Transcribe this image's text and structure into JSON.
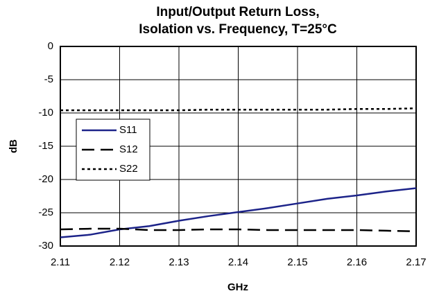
{
  "chart_data": {
    "type": "line",
    "title": [
      "Input/Output Return Loss,",
      "Isolation vs. Frequency, T=25°C"
    ],
    "x_label": "GHz",
    "y_label": "dB",
    "x": [
      2.11,
      2.115,
      2.12,
      2.125,
      2.13,
      2.135,
      2.14,
      2.145,
      2.15,
      2.155,
      2.16,
      2.165,
      2.17
    ],
    "series": [
      {
        "name": "S11",
        "color": "#1c2389",
        "dash": "solid",
        "values": [
          -28.7,
          -28.3,
          -27.5,
          -27.0,
          -26.2,
          -25.5,
          -24.9,
          -24.3,
          -23.6,
          -22.9,
          -22.4,
          -21.8,
          -21.3
        ]
      },
      {
        "name": "S12",
        "color": "#000000",
        "dash": "dashed",
        "values": [
          -27.5,
          -27.4,
          -27.4,
          -27.6,
          -27.6,
          -27.5,
          -27.5,
          -27.6,
          -27.6,
          -27.6,
          -27.6,
          -27.7,
          -27.8
        ]
      },
      {
        "name": "S22",
        "color": "#000000",
        "dash": "dotted",
        "values": [
          -9.6,
          -9.6,
          -9.6,
          -9.6,
          -9.6,
          -9.5,
          -9.5,
          -9.5,
          -9.5,
          -9.5,
          -9.4,
          -9.4,
          -9.3
        ]
      }
    ],
    "xlim": [
      2.11,
      2.17
    ],
    "xticks": [
      2.11,
      2.12,
      2.13,
      2.14,
      2.15,
      2.16,
      2.17
    ],
    "ylim": [
      -30,
      0
    ],
    "yticks": [
      0,
      -5,
      -10,
      -15,
      -20,
      -25,
      -30
    ],
    "grid": true,
    "legend": "left"
  }
}
